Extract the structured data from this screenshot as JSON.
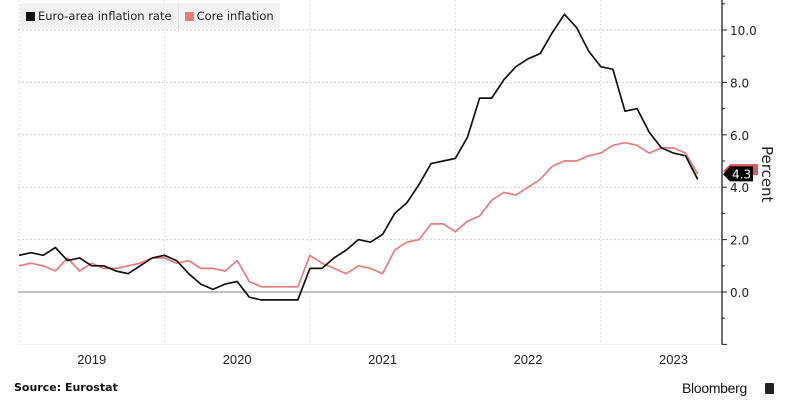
{
  "chart_data": {
    "type": "line",
    "title": "",
    "xlabel": "",
    "ylabel": "Percent",
    "ylim": [
      -2,
      11
    ],
    "yticks": [
      "-2",
      "0.0",
      "2.0",
      "4.0",
      "6.0",
      "8.0",
      "10.0"
    ],
    "ytick_values": [
      -2,
      0,
      2,
      4,
      6,
      8,
      10
    ],
    "xtick_labels": [
      "2019",
      "2020",
      "2021",
      "2022",
      "2023"
    ],
    "x_start": "2019-01",
    "x_frequency": "monthly",
    "grid": true,
    "legend_placement": "top-left",
    "series": [
      {
        "name": "Euro-area inflation rate",
        "color": "#111111",
        "values": [
          1.4,
          1.5,
          1.4,
          1.7,
          1.2,
          1.3,
          1.0,
          1.0,
          0.8,
          0.7,
          1.0,
          1.3,
          1.4,
          1.2,
          0.7,
          0.3,
          0.1,
          0.3,
          0.4,
          -0.2,
          -0.3,
          -0.3,
          -0.3,
          -0.3,
          0.9,
          0.9,
          1.3,
          1.6,
          2.0,
          1.9,
          2.2,
          3.0,
          3.4,
          4.1,
          4.9,
          5.0,
          5.1,
          5.9,
          7.4,
          7.4,
          8.1,
          8.6,
          8.9,
          9.1,
          9.9,
          10.6,
          10.1,
          9.2,
          8.6,
          8.5,
          6.9,
          7.0,
          6.1,
          5.5,
          5.3,
          5.2,
          4.3
        ]
      },
      {
        "name": "Core inflation",
        "color": "#ea7b7b",
        "values": [
          1.0,
          1.1,
          1.0,
          0.8,
          1.3,
          0.8,
          1.1,
          0.9,
          0.9,
          1.0,
          1.1,
          1.3,
          1.3,
          1.1,
          1.2,
          0.9,
          0.9,
          0.8,
          1.2,
          0.4,
          0.2,
          0.2,
          0.2,
          0.2,
          1.4,
          1.1,
          0.9,
          0.7,
          1.0,
          0.9,
          0.7,
          1.6,
          1.9,
          2.0,
          2.6,
          2.6,
          2.3,
          2.7,
          2.9,
          3.5,
          3.8,
          3.7,
          4.0,
          4.3,
          4.8,
          5.0,
          5.0,
          5.2,
          5.3,
          5.6,
          5.7,
          5.6,
          5.3,
          5.5,
          5.5,
          5.3,
          4.5
        ]
      }
    ],
    "last_value_label": "4.3"
  },
  "footer": {
    "source": "Source:  Eurostat",
    "brand": "Bloomberg"
  }
}
